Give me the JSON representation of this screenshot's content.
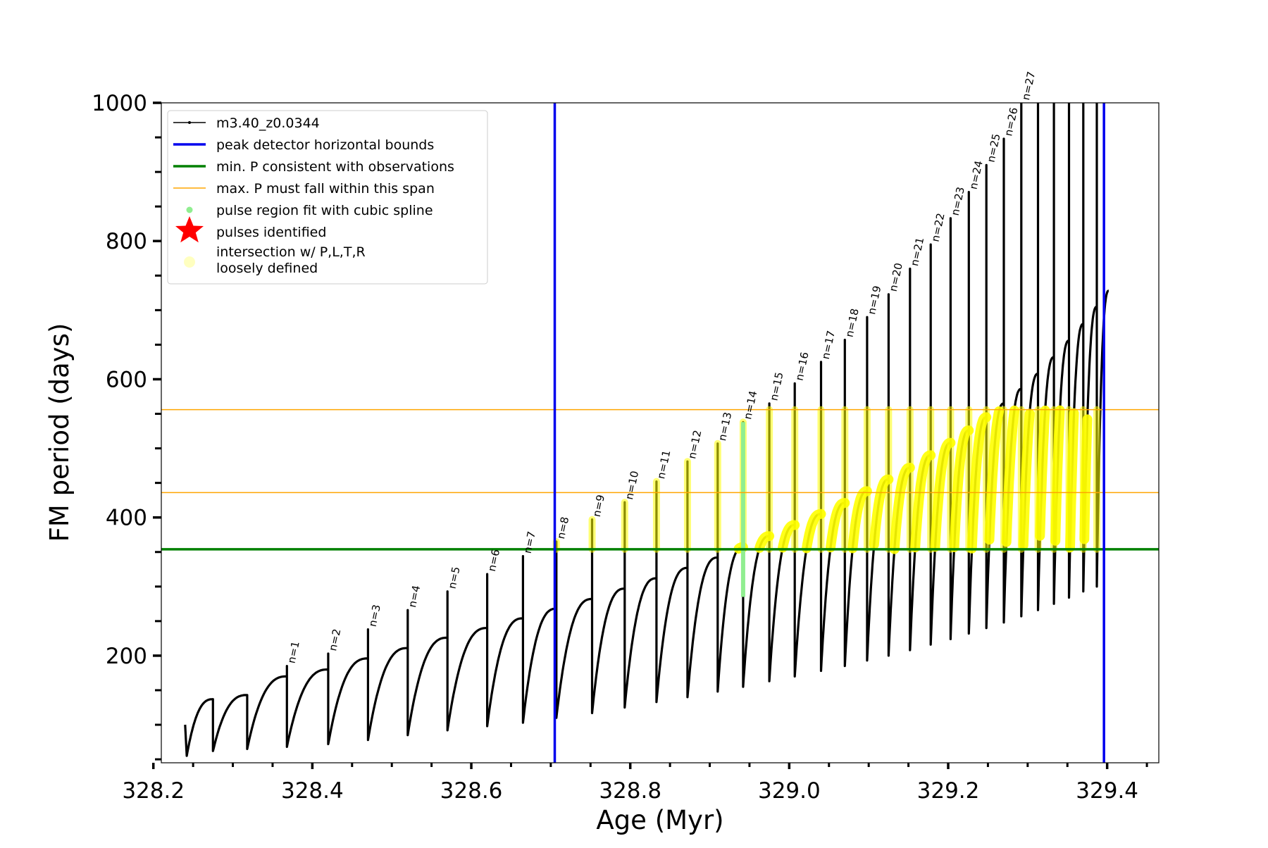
{
  "chart_data": {
    "type": "line",
    "xlabel": "Age (Myr)",
    "ylabel": "FM period (days)",
    "xlim": [
      328.21,
      329.465
    ],
    "ylim": [
      45,
      1000
    ],
    "x_ticks": [
      328.2,
      328.4,
      328.6,
      328.8,
      329.0,
      329.2,
      329.4
    ],
    "x_tick_labels": [
      "328.2",
      "328.4",
      "328.6",
      "328.8",
      "329.0",
      "329.2",
      "329.4"
    ],
    "y_ticks": [
      200,
      400,
      600,
      800,
      1000
    ],
    "y_tick_labels": [
      "200",
      "400",
      "600",
      "800",
      "1000"
    ],
    "legend_position": "upper-left",
    "legend": [
      {
        "label": "m3.40_z0.0344",
        "marker": "line-dot",
        "color": "#000000"
      },
      {
        "label": "peak detector horizontal bounds",
        "marker": "thick-line",
        "color": "#0000ee"
      },
      {
        "label": "min. P consistent with observations",
        "marker": "thick-line",
        "color": "#008000"
      },
      {
        "label": "max. P must fall within this span",
        "marker": "thin-line",
        "color": "#ffa500"
      },
      {
        "label": "pulse region fit with cubic spline",
        "marker": "dot",
        "color": "#90ee90"
      },
      {
        "label": "pulses identified",
        "marker": "star",
        "color": "#ff0000"
      },
      {
        "label": "intersection w/ P,L,T,R",
        "label2": "loosely defined",
        "marker": "circle",
        "color": "#ffffc0"
      }
    ],
    "reference_lines": {
      "vertical_blue_x": [
        328.705,
        329.396
      ],
      "horizontal_green_y": 354,
      "horizontal_orange_y": [
        436,
        556
      ]
    },
    "series": [
      {
        "name": "m3.40_z0.0344",
        "color": "#000000",
        "pulses": [
          {
            "n": 0,
            "label": "",
            "age": 328.275,
            "min": 60,
            "top": 137
          },
          {
            "n": 0,
            "label": "",
            "age": 328.318,
            "min": 62,
            "top": 143
          },
          {
            "n": 1,
            "label": "n=1",
            "age": 328.368,
            "min": 65,
            "top": 170,
            "spike": 185
          },
          {
            "n": 2,
            "label": "n=2",
            "age": 328.42,
            "min": 68,
            "top": 180,
            "spike": 203
          },
          {
            "n": 3,
            "label": "n=3",
            "age": 328.47,
            "min": 72,
            "top": 196,
            "spike": 238
          },
          {
            "n": 4,
            "label": "n=4",
            "age": 328.52,
            "min": 78,
            "top": 211,
            "spike": 266
          },
          {
            "n": 5,
            "label": "n=5",
            "age": 328.57,
            "min": 85,
            "top": 226,
            "spike": 293
          },
          {
            "n": 6,
            "label": "n=6",
            "age": 328.62,
            "min": 92,
            "top": 240,
            "spike": 318
          },
          {
            "n": 7,
            "label": "n=7",
            "age": 328.665,
            "min": 98,
            "top": 254,
            "spike": 344
          },
          {
            "n": 8,
            "label": "n=8",
            "age": 328.707,
            "min": 103,
            "top": 268,
            "spike": 365
          },
          {
            "n": 9,
            "label": "n=9",
            "age": 328.752,
            "min": 110,
            "top": 282,
            "spike": 397
          },
          {
            "n": 10,
            "label": "n=10",
            "age": 328.793,
            "min": 117,
            "top": 297,
            "spike": 422
          },
          {
            "n": 11,
            "label": "n=11",
            "age": 328.833,
            "min": 125,
            "top": 312,
            "spike": 452
          },
          {
            "n": 12,
            "label": "n=12",
            "age": 328.872,
            "min": 133,
            "top": 327,
            "spike": 481
          },
          {
            "n": 13,
            "label": "n=13",
            "age": 328.91,
            "min": 140,
            "top": 342,
            "spike": 507
          },
          {
            "n": 14,
            "label": "n=14",
            "age": 328.942,
            "min": 148,
            "top": 357,
            "spike": 538
          },
          {
            "n": 15,
            "label": "n=15",
            "age": 328.975,
            "min": 155,
            "top": 373,
            "spike": 565
          },
          {
            "n": 16,
            "label": "n=16",
            "age": 329.007,
            "min": 163,
            "top": 389,
            "spike": 594
          },
          {
            "n": 17,
            "label": "n=17",
            "age": 329.04,
            "min": 170,
            "top": 405,
            "spike": 625
          },
          {
            "n": 18,
            "label": "n=18",
            "age": 329.07,
            "min": 178,
            "top": 421,
            "spike": 657
          },
          {
            "n": 19,
            "label": "n=19",
            "age": 329.098,
            "min": 185,
            "top": 438,
            "spike": 690
          },
          {
            "n": 20,
            "label": "n=20",
            "age": 329.125,
            "min": 193,
            "top": 455,
            "spike": 723
          },
          {
            "n": 21,
            "label": "n=21",
            "age": 329.152,
            "min": 200,
            "top": 472,
            "spike": 760
          },
          {
            "n": 22,
            "label": "n=22",
            "age": 329.178,
            "min": 208,
            "top": 490,
            "spike": 795
          },
          {
            "n": 23,
            "label": "n=23",
            "age": 329.203,
            "min": 216,
            "top": 508,
            "spike": 833
          },
          {
            "n": 24,
            "label": "n=24",
            "age": 329.226,
            "min": 224,
            "top": 526,
            "spike": 871
          },
          {
            "n": 25,
            "label": "n=25",
            "age": 329.248,
            "min": 232,
            "top": 545,
            "spike": 910
          },
          {
            "n": 26,
            "label": "n=26",
            "age": 329.27,
            "min": 240,
            "top": 565,
            "spike": 948
          },
          {
            "n": 27,
            "label": "n=27",
            "age": 329.292,
            "min": 248,
            "top": 586,
            "spike": 1000
          },
          {
            "n": 28,
            "label": "",
            "age": 329.313,
            "min": 257,
            "top": 608,
            "spike": 1000
          },
          {
            "n": 29,
            "label": "",
            "age": 329.333,
            "min": 266,
            "top": 632,
            "spike": 1000
          },
          {
            "n": 30,
            "label": "",
            "age": 329.352,
            "min": 275,
            "top": 656,
            "spike": 1000
          },
          {
            "n": 31,
            "label": "",
            "age": 329.37,
            "min": 284,
            "top": 680,
            "spike": 1000
          },
          {
            "n": 32,
            "label": "",
            "age": 329.387,
            "min": 293,
            "top": 705,
            "spike": 1000
          },
          {
            "n": 33,
            "label": "",
            "age": 329.402,
            "min": 300,
            "top": 728
          }
        ],
        "start": {
          "age": 328.24,
          "value": 100
        },
        "first_min": {
          "age": 328.242,
          "value": 55
        }
      }
    ]
  }
}
